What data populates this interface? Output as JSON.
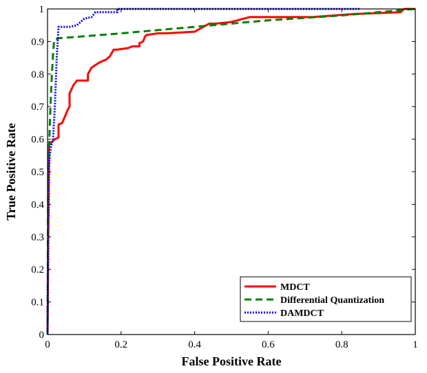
{
  "chart_data": {
    "type": "line",
    "xlabel": "False Positive Rate",
    "ylabel": "True Positive Rate",
    "xlim": [
      0,
      1
    ],
    "ylim": [
      0,
      1
    ],
    "xticks": [
      0,
      0.2,
      0.4,
      0.6,
      0.8,
      1
    ],
    "xtick_labels": [
      "0",
      "0.2",
      "0.4",
      "0.6",
      "0.8",
      "1"
    ],
    "yticks": [
      0,
      0.1,
      0.2,
      0.3,
      0.4,
      0.5,
      0.6,
      0.7,
      0.8,
      0.9,
      1
    ],
    "ytick_labels": [
      "0",
      "0.1",
      "0.2",
      "0.3",
      "0.4",
      "0.5",
      "0.6",
      "0.7",
      "0.8",
      "0.9",
      "1"
    ],
    "grid": false,
    "legend_position": "bottom-right",
    "series": [
      {
        "name": "MDCT",
        "color": "#ff0000",
        "style": "solid",
        "x": [
          0,
          0.001,
          0.002,
          0.004,
          0.004,
          0.01,
          0.02,
          0.03,
          0.03,
          0.04,
          0.055,
          0.06,
          0.06,
          0.07,
          0.08,
          0.09,
          0.11,
          0.11,
          0.12,
          0.14,
          0.16,
          0.17,
          0.18,
          0.19,
          0.22,
          0.23,
          0.25,
          0.25,
          0.26,
          0.265,
          0.27,
          0.3,
          0.32,
          0.4,
          0.44,
          0.46,
          0.5,
          0.55,
          0.72,
          0.84,
          0.85,
          0.96,
          0.97,
          1
        ],
        "y": [
          0,
          0.1,
          0.3,
          0.5,
          0.58,
          0.59,
          0.6,
          0.605,
          0.645,
          0.65,
          0.69,
          0.7,
          0.74,
          0.765,
          0.78,
          0.78,
          0.78,
          0.8,
          0.82,
          0.835,
          0.845,
          0.855,
          0.875,
          0.875,
          0.88,
          0.885,
          0.885,
          0.895,
          0.9,
          0.915,
          0.92,
          0.925,
          0.925,
          0.93,
          0.955,
          0.955,
          0.96,
          0.975,
          0.975,
          0.985,
          0.985,
          0.99,
          1,
          1
        ]
      },
      {
        "name": "Differential Quantization",
        "color": "#008000",
        "style": "dashed",
        "x": [
          0,
          0.002,
          0.005,
          0.008,
          0.012,
          0.015,
          0.018,
          0.03,
          0.2,
          0.4,
          0.5,
          0.6,
          0.8,
          0.95,
          1
        ],
        "y": [
          0,
          0.5,
          0.6,
          0.7,
          0.8,
          0.86,
          0.905,
          0.91,
          0.925,
          0.945,
          0.955,
          0.965,
          0.98,
          0.995,
          1
        ]
      },
      {
        "name": "DAMDCT",
        "color": "#0000ff",
        "style": "dotted",
        "x": [
          0,
          0.003,
          0.006,
          0.01,
          0.015,
          0.02,
          0.025,
          0.03,
          0.06,
          0.08,
          0.1,
          0.12,
          0.13,
          0.15,
          0.16,
          0.19,
          0.19,
          0.2,
          0.85
        ],
        "y": [
          0,
          0.5,
          0.55,
          0.58,
          0.6,
          0.7,
          0.85,
          0.945,
          0.945,
          0.95,
          0.97,
          0.975,
          0.99,
          0.99,
          0.99,
          0.99,
          1,
          1,
          1
        ]
      }
    ]
  }
}
